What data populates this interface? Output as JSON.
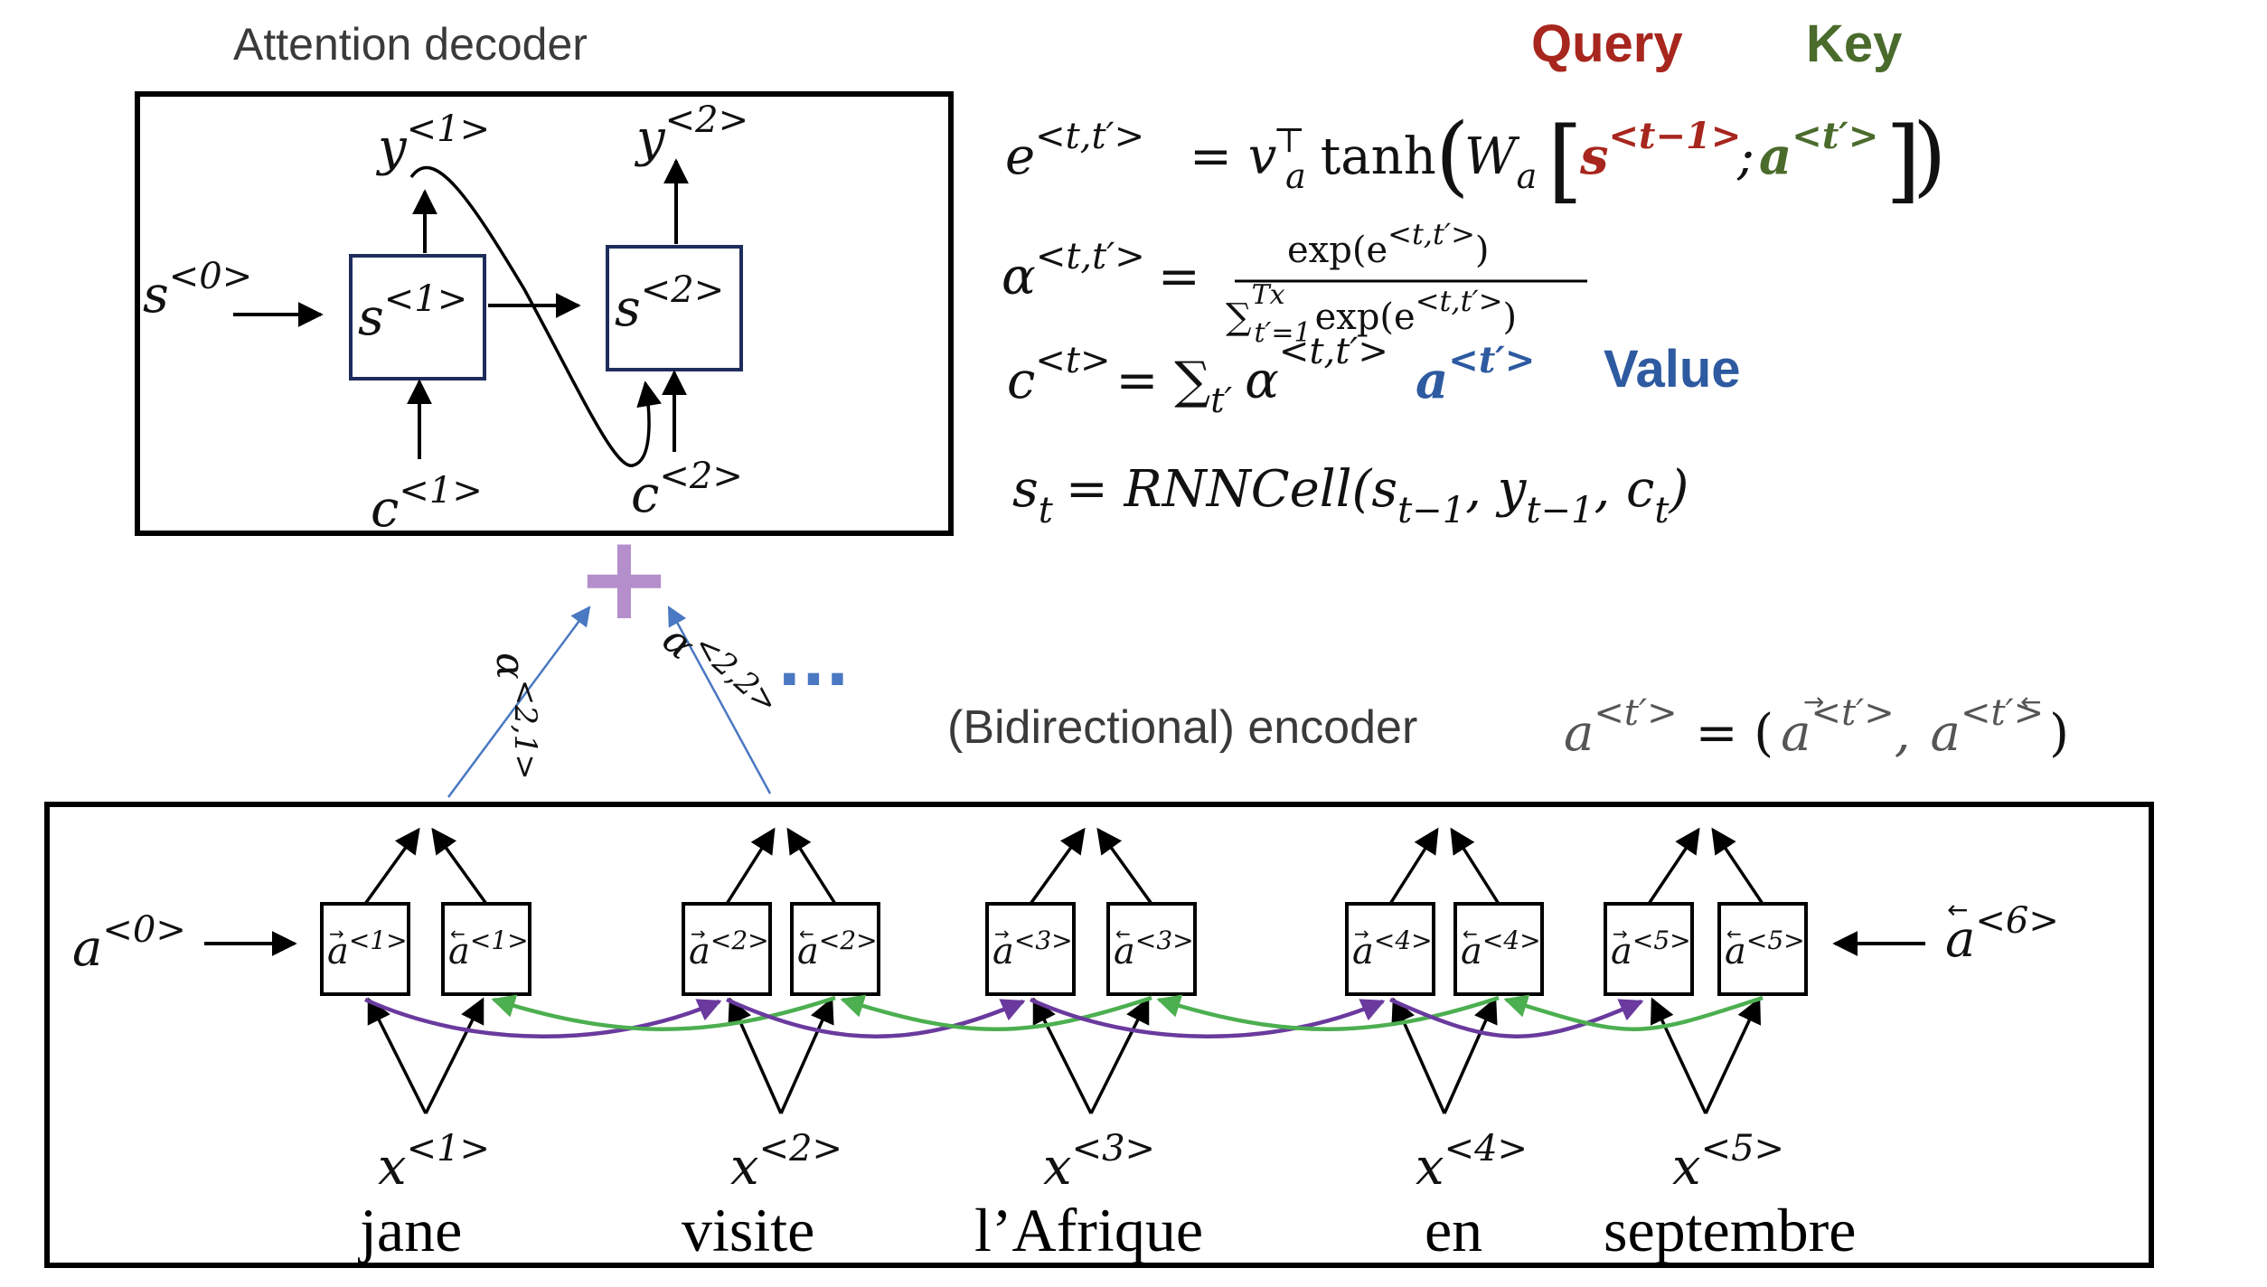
{
  "decoder": {
    "title": "Attention decoder",
    "y1": "y",
    "y1_sup": "<1>",
    "y2": "y",
    "y2_sup": "<2>",
    "s0": "s",
    "s0_sup": "<0>",
    "s1": "s",
    "s1_sup": "<1>",
    "s2": "s",
    "s2_sup": "<2>",
    "c1": "c",
    "c1_sup": "<1>",
    "c2": "c",
    "c2_sup": "<2>"
  },
  "legend": {
    "query": "Query",
    "key": "Key",
    "value": "Value",
    "query_color": "#a7261d",
    "key_color": "#4a6b2b",
    "value_color": "#2d5aa0"
  },
  "equations": {
    "e_lhs": "e",
    "e_lhs_sup": "<t,t′>",
    "e_rhs_1": "= v",
    "e_rhs_v_sub": "a",
    "e_rhs_v_sup": "⊤",
    "e_rhs_tanh": "tanh",
    "e_rhs_W": "W",
    "e_rhs_W_sub": "a",
    "e_rhs_s": "s",
    "e_rhs_s_sup": "<t−1>",
    "e_rhs_sep": ";",
    "e_rhs_a": "a",
    "e_rhs_a_sup": "<t′>",
    "alpha_lhs": "α",
    "alpha_lhs_sup": "<t,t′>",
    "alpha_eq": "=",
    "alpha_num": "exp(e",
    "alpha_num_sup": "<t,t′>",
    "alpha_num_close": ")",
    "alpha_den_sum": "∑",
    "alpha_den_sum_sup": "Tx",
    "alpha_den_sum_sub": "t′=1",
    "alpha_den": "exp(e",
    "alpha_den_sup": "<t,t′>",
    "alpha_den_close": ")",
    "c_lhs": "c",
    "c_lhs_sup": "<t>",
    "c_rhs": "= ∑",
    "c_rhs_sub": "t′",
    "c_rhs_alpha": "α",
    "c_rhs_alpha_sup": "<t,t′>",
    "c_rhs_a": "a",
    "c_rhs_a_sup": "<t′>",
    "s_rule": "s",
    "s_rule_sub": "t",
    "s_rule_rhs": "= RNNCell(s",
    "s_rule_sub2": "t−1",
    "s_rule_y": ", y",
    "s_rule_sub3": "t−1",
    "s_rule_c": ", c",
    "s_rule_sub4": "t",
    "s_rule_close": ")"
  },
  "attention": {
    "plus": "+",
    "w1": "α",
    "w1_sup": "<2,1>",
    "w2": "α",
    "w2_sup": "<2,2>",
    "dots": "..."
  },
  "encoder": {
    "title": "(Bidirectional) encoder",
    "def_lhs": "a",
    "def_lhs_sup": "<t′>",
    "def_rhs": "= (",
    "def_f": "a",
    "def_f_sup": "<t′>",
    "def_comma": ",",
    "def_b": "a",
    "def_b_sup": "<t′>",
    "def_close": ")",
    "a0": "a",
    "a0_sup": "<0>",
    "a6": "a",
    "a6_sup": "<6>",
    "cells": [
      {
        "fwd": "a",
        "fwd_sup": "<1>",
        "bwd": "a",
        "bwd_sup": "<1>",
        "x": "x",
        "x_sup": "<1>",
        "word": "jane"
      },
      {
        "fwd": "a",
        "fwd_sup": "<2>",
        "bwd": "a",
        "bwd_sup": "<2>",
        "x": "x",
        "x_sup": "<2>",
        "word": "visite"
      },
      {
        "fwd": "a",
        "fwd_sup": "<3>",
        "bwd": "a",
        "bwd_sup": "<3>",
        "x": "x",
        "x_sup": "<3>",
        "word": "l’Afrique"
      },
      {
        "fwd": "a",
        "fwd_sup": "<4>",
        "bwd": "a",
        "bwd_sup": "<4>",
        "x": "x",
        "x_sup": "<4>",
        "word": "en"
      },
      {
        "fwd": "a",
        "fwd_sup": "<5>",
        "bwd": "a",
        "bwd_sup": "<5>",
        "x": "x",
        "x_sup": "<5>",
        "word": "septembre"
      }
    ]
  },
  "colors": {
    "forward_arrow": "#6a3a9e",
    "backward_arrow": "#4caf50",
    "attention_line": "#4a78c2",
    "plus": "#b58fcb",
    "decoder_box": "#1e2d5c"
  }
}
